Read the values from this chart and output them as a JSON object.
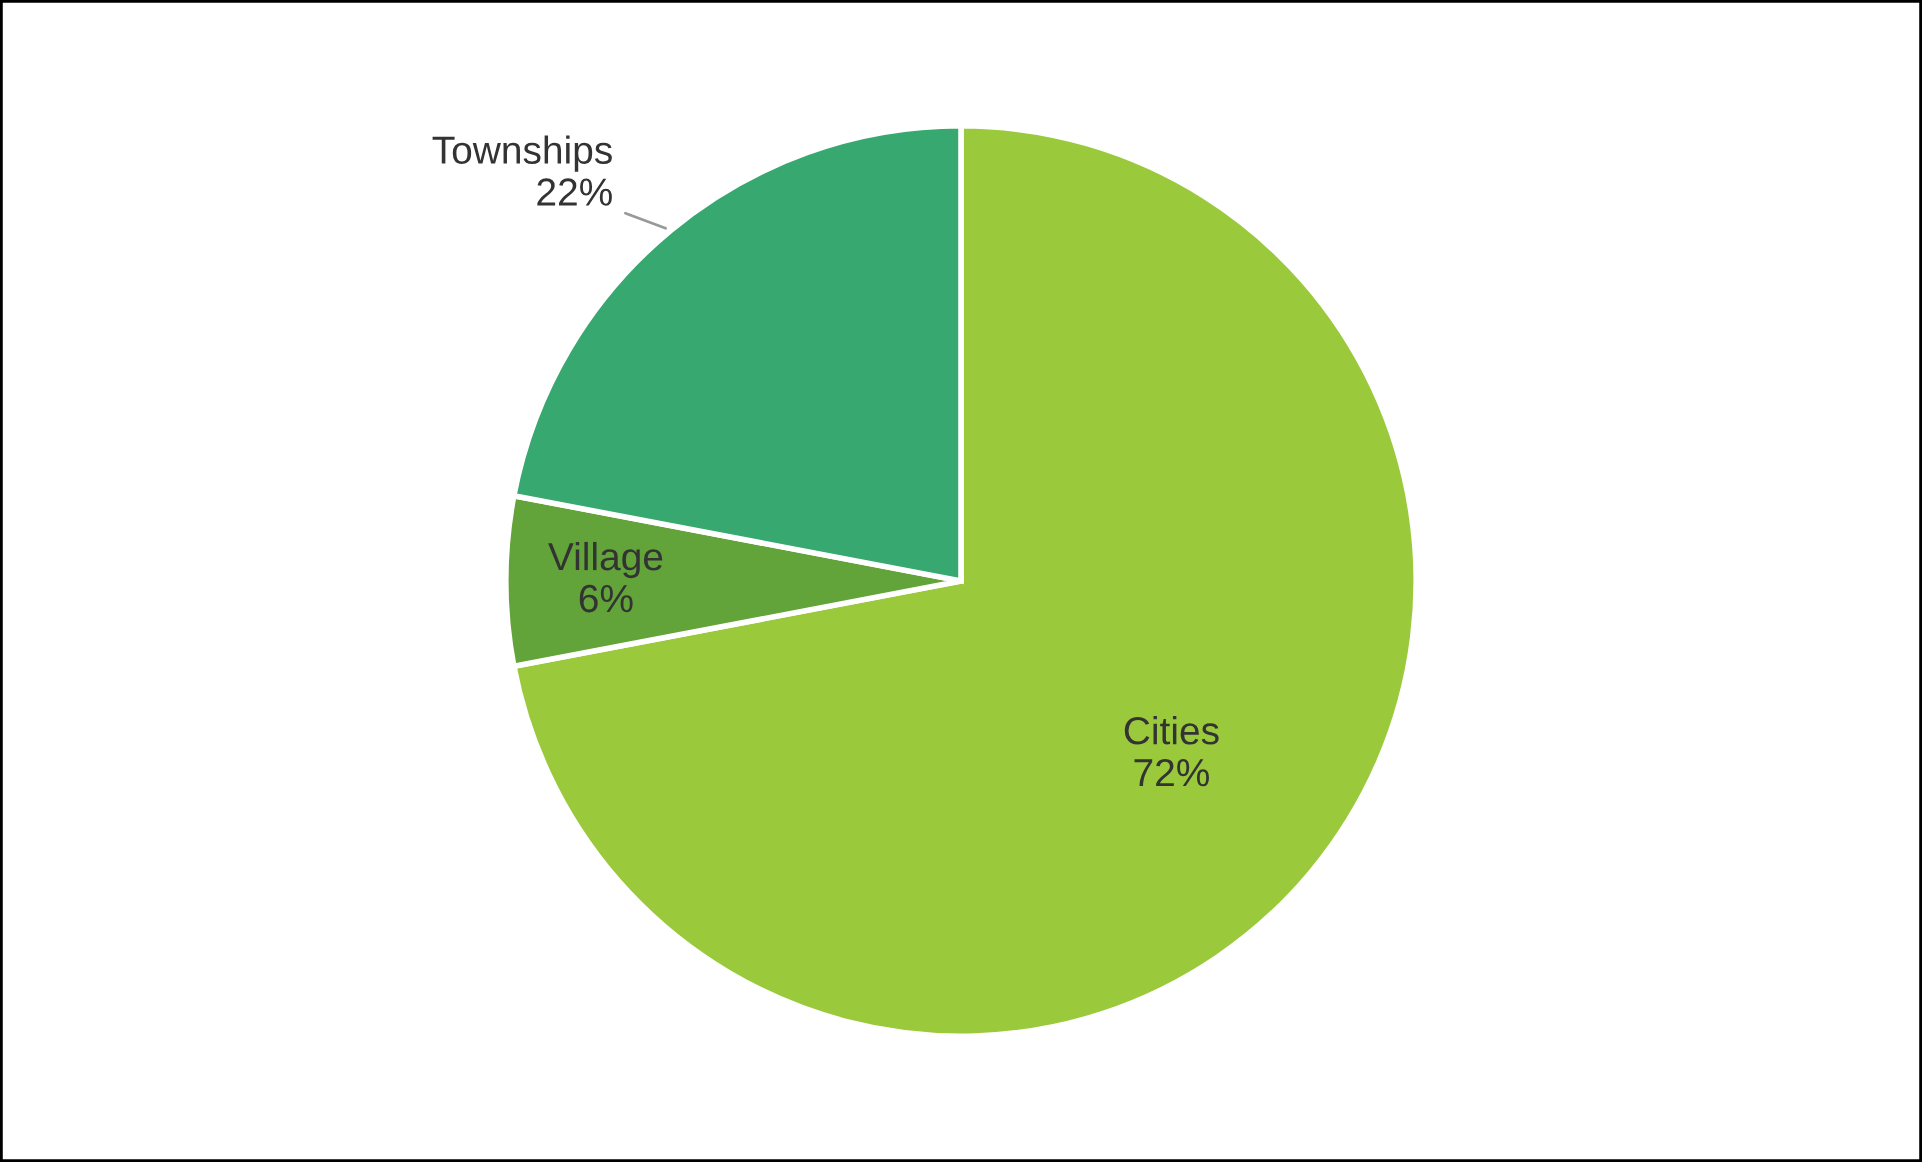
{
  "chart_data": {
    "type": "pie",
    "categories": [
      "Cities",
      "Village",
      "Townships"
    ],
    "values": [
      72,
      6,
      22
    ],
    "value_labels": [
      "72%",
      "6%",
      "22%"
    ],
    "colors": [
      "#9aca3c",
      "#62a33a",
      "#37a86f"
    ],
    "legend": false
  }
}
